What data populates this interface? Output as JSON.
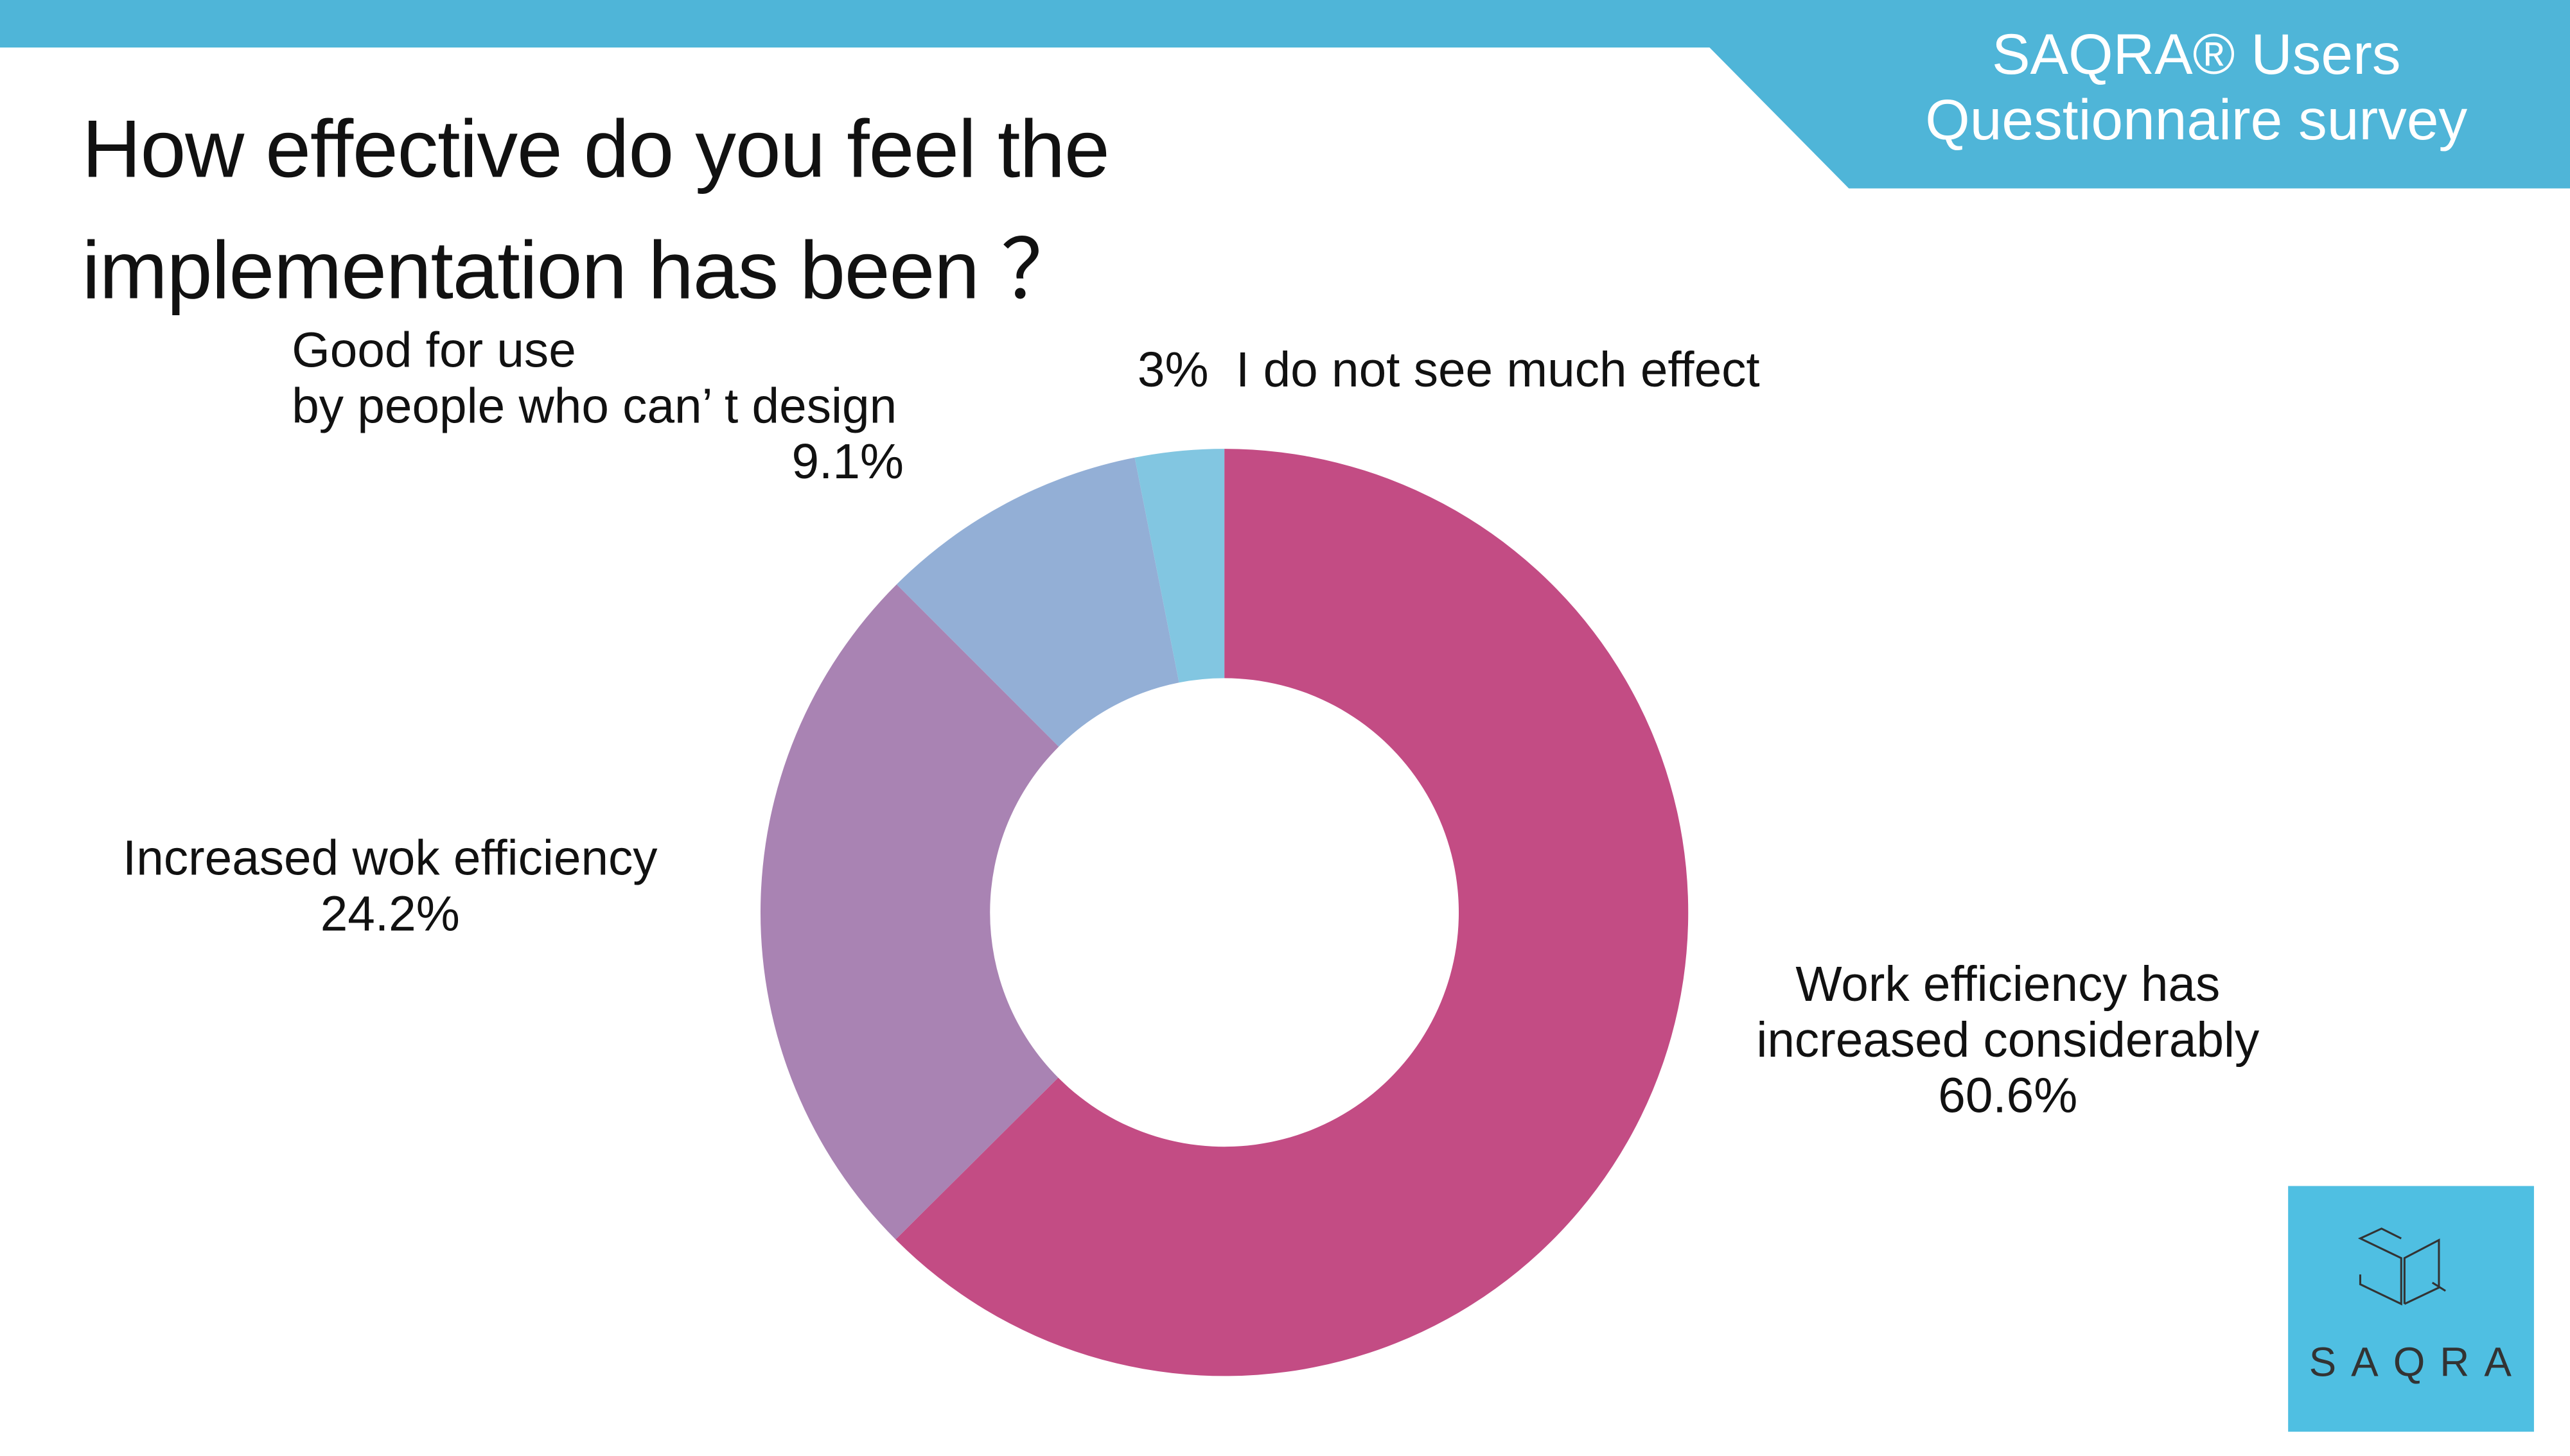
{
  "header": {
    "brand_line": "SAQRA® Users",
    "subtitle_line": "Questionnaire survey",
    "color": "#4fb5d8"
  },
  "logo": {
    "text": "SAQRA",
    "color": "#4fbfe2"
  },
  "chart_data": {
    "type": "pie",
    "donut": true,
    "title": "How effective do you feel the implementation has been ?",
    "title_lines": [
      "How effective do you feel the",
      "implementation has been ？"
    ],
    "slices": [
      {
        "label_lines": [
          "Work efficiency has",
          "increased considerably"
        ],
        "value_label": "60.6%",
        "value": 60.6,
        "color": "#c34c84"
      },
      {
        "label_lines": [
          "Increased wok efficiency"
        ],
        "value_label": "24.2%",
        "value": 24.2,
        "color": "#a983b3"
      },
      {
        "label_lines": [
          "Good for use",
          "by people who can’ t design"
        ],
        "value_label": "9.1%",
        "value": 9.1,
        "color": "#93afd6"
      },
      {
        "label_lines": [
          "I do not see much effect"
        ],
        "value_label": "3%",
        "value": 3,
        "color": "#82c6e1"
      }
    ]
  }
}
